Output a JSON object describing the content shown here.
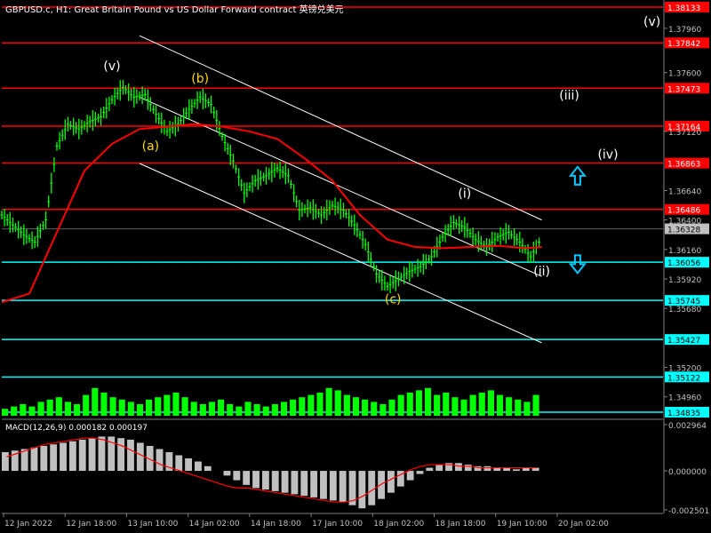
{
  "header": {
    "title": "GBPUSD.c, H1:  Great Britain Pound vs US Dollar Forward contract  英镑兑美元"
  },
  "colors": {
    "background": "#000000",
    "price_bars": "#00ff00",
    "moving_average": "#ff0000",
    "channel": "#ffffff",
    "resistance": "#ff0000",
    "support": "#00ffff",
    "wave_label_white": "#ffffff",
    "wave_label_yellow": "#ffd700",
    "arrow": "#00c8ff"
  },
  "chart_data": [
    {
      "type": "line",
      "name": "price",
      "y_axis_ticks": [
        "1.37960",
        "1.37600",
        "1.37120",
        "1.36640",
        "1.36400",
        "1.36160",
        "1.35920",
        "1.35680",
        "1.35200",
        "1.34960"
      ],
      "ylim": [
        1.34835,
        1.38133
      ],
      "x_tick_labels": [
        "12 Jan 2022",
        "12 Jan 18:00",
        "13 Jan 10:00",
        "14 Jan 02:00",
        "14 Jan 18:00",
        "17 Jan 10:00",
        "18 Jan 02:00",
        "18 Jan 18:00",
        "19 Jan 10:00",
        "20 Jan 02:00"
      ],
      "price_series": [
        {
          "x": 0,
          "y": 1.3644
        },
        {
          "x": 4,
          "y": 1.3636
        },
        {
          "x": 8,
          "y": 1.3628
        },
        {
          "x": 12,
          "y": 1.3622
        },
        {
          "x": 16,
          "y": 1.364
        },
        {
          "x": 20,
          "y": 1.37
        },
        {
          "x": 24,
          "y": 1.3718
        },
        {
          "x": 28,
          "y": 1.3714
        },
        {
          "x": 32,
          "y": 1.372
        },
        {
          "x": 36,
          "y": 1.3724
        },
        {
          "x": 40,
          "y": 1.3738
        },
        {
          "x": 44,
          "y": 1.3748
        },
        {
          "x": 48,
          "y": 1.374
        },
        {
          "x": 52,
          "y": 1.3742
        },
        {
          "x": 56,
          "y": 1.3726
        },
        {
          "x": 60,
          "y": 1.3712
        },
        {
          "x": 64,
          "y": 1.3718
        },
        {
          "x": 68,
          "y": 1.373
        },
        {
          "x": 72,
          "y": 1.374
        },
        {
          "x": 76,
          "y": 1.3734
        },
        {
          "x": 80,
          "y": 1.3708
        },
        {
          "x": 84,
          "y": 1.3688
        },
        {
          "x": 88,
          "y": 1.3662
        },
        {
          "x": 92,
          "y": 1.3672
        },
        {
          "x": 96,
          "y": 1.3676
        },
        {
          "x": 100,
          "y": 1.3682
        },
        {
          "x": 104,
          "y": 1.3676
        },
        {
          "x": 108,
          "y": 1.3648
        },
        {
          "x": 112,
          "y": 1.365
        },
        {
          "x": 116,
          "y": 1.3644
        },
        {
          "x": 120,
          "y": 1.3652
        },
        {
          "x": 124,
          "y": 1.3648
        },
        {
          "x": 128,
          "y": 1.3636
        },
        {
          "x": 132,
          "y": 1.362
        },
        {
          "x": 136,
          "y": 1.3596
        },
        {
          "x": 140,
          "y": 1.3586
        },
        {
          "x": 144,
          "y": 1.3592
        },
        {
          "x": 148,
          "y": 1.3598
        },
        {
          "x": 152,
          "y": 1.3602
        },
        {
          "x": 156,
          "y": 1.361
        },
        {
          "x": 160,
          "y": 1.3626
        },
        {
          "x": 164,
          "y": 1.3638
        },
        {
          "x": 168,
          "y": 1.3634
        },
        {
          "x": 172,
          "y": 1.3624
        },
        {
          "x": 176,
          "y": 1.3618
        },
        {
          "x": 180,
          "y": 1.3626
        },
        {
          "x": 184,
          "y": 1.363
        },
        {
          "x": 188,
          "y": 1.3622
        },
        {
          "x": 192,
          "y": 1.361
        },
        {
          "x": 196,
          "y": 1.3626
        }
      ],
      "moving_average": [
        {
          "x": 0,
          "y": 1.3573
        },
        {
          "x": 10,
          "y": 1.358
        },
        {
          "x": 20,
          "y": 1.363
        },
        {
          "x": 30,
          "y": 1.368
        },
        {
          "x": 40,
          "y": 1.3702
        },
        {
          "x": 50,
          "y": 1.3714
        },
        {
          "x": 60,
          "y": 1.3716
        },
        {
          "x": 70,
          "y": 1.3718
        },
        {
          "x": 80,
          "y": 1.3716
        },
        {
          "x": 90,
          "y": 1.3712
        },
        {
          "x": 100,
          "y": 1.3706
        },
        {
          "x": 110,
          "y": 1.369
        },
        {
          "x": 120,
          "y": 1.3672
        },
        {
          "x": 130,
          "y": 1.3644
        },
        {
          "x": 140,
          "y": 1.3624
        },
        {
          "x": 150,
          "y": 1.3618
        },
        {
          "x": 160,
          "y": 1.3617
        },
        {
          "x": 170,
          "y": 1.3618
        },
        {
          "x": 180,
          "y": 1.3619
        },
        {
          "x": 190,
          "y": 1.3617
        },
        {
          "x": 196,
          "y": 1.3618
        }
      ],
      "volume": [
        3,
        4,
        5,
        4,
        6,
        7,
        8,
        6,
        5,
        9,
        12,
        10,
        8,
        7,
        6,
        5,
        7,
        8,
        9,
        10,
        8,
        6,
        5,
        6,
        7,
        5,
        4,
        6,
        5,
        4,
        5,
        6,
        7,
        8,
        9,
        10,
        12,
        11,
        9,
        8,
        7,
        6,
        5,
        7,
        9,
        10,
        11,
        12,
        9,
        10,
        8,
        7,
        9,
        10,
        11,
        9,
        8,
        7,
        6,
        9
      ],
      "horizontal_levels": [
        {
          "label": "1.38133",
          "value": 1.38133,
          "kind": "resistance"
        },
        {
          "label": "1.37842",
          "value": 1.37842,
          "kind": "resistance"
        },
        {
          "label": "1.37473",
          "value": 1.37473,
          "kind": "resistance"
        },
        {
          "label": "1.37164",
          "value": 1.37164,
          "kind": "resistance"
        },
        {
          "label": "1.36863",
          "value": 1.36863,
          "kind": "resistance"
        },
        {
          "label": "1.36486",
          "value": 1.36486,
          "kind": "resistance"
        },
        {
          "label": "1.36056",
          "value": 1.36056,
          "kind": "support"
        },
        {
          "label": "1.35745",
          "value": 1.35745,
          "kind": "support"
        },
        {
          "label": "1.35427",
          "value": 1.35427,
          "kind": "support"
        },
        {
          "label": "1.35122",
          "value": 1.35122,
          "kind": "support"
        },
        {
          "label": "1.34835",
          "value": 1.34835,
          "kind": "support"
        }
      ],
      "current_price": {
        "label": "1.36328",
        "value": 1.36328
      },
      "channel": {
        "upper": [
          {
            "x": 50,
            "y": 1.379
          },
          {
            "x": 196,
            "y": 1.364
          }
        ],
        "middle": [
          {
            "x": 50,
            "y": 1.374
          },
          {
            "x": 196,
            "y": 1.3594
          }
        ],
        "lower": [
          {
            "x": 50,
            "y": 1.3686
          },
          {
            "x": 196,
            "y": 1.354
          }
        ]
      },
      "wave_labels": [
        {
          "text": "(v)",
          "x": 40,
          "y": 1.3762,
          "color": "white"
        },
        {
          "text": "(b)",
          "x": 72,
          "y": 1.3752,
          "color": "yellow"
        },
        {
          "text": "(a)",
          "x": 54,
          "y": 1.3697,
          "color": "yellow"
        },
        {
          "text": "(c)",
          "x": 142,
          "y": 1.3572,
          "color": "yellow"
        },
        {
          "text": "(i)",
          "x": 168,
          "y": 1.3658,
          "color": "white"
        },
        {
          "text": "(ii)",
          "x": 196,
          "y": 1.3595,
          "color": "white"
        },
        {
          "text": "(iii)",
          "x": 206,
          "y": 1.3738,
          "color": "white"
        },
        {
          "text": "(iv)",
          "x": 220,
          "y": 1.369,
          "color": "white"
        },
        {
          "text": "(v)",
          "x": 236,
          "y": 1.3798,
          "color": "white"
        }
      ],
      "arrows": [
        {
          "direction": "up",
          "x": 209,
          "y": 1.3676
        },
        {
          "direction": "down",
          "x": 209,
          "y": 1.3604
        }
      ]
    },
    {
      "type": "bar",
      "name": "macd",
      "title": "MACD(12,26,9) 0.000182 0.000197",
      "y_axis_ticks": [
        "0.002964",
        "0.000000",
        "-0.002501"
      ],
      "ylim": [
        -0.002501,
        0.002964
      ],
      "values": [
        0.0012,
        0.0013,
        0.0014,
        0.0015,
        0.0016,
        0.0017,
        0.0018,
        0.0019,
        0.002,
        0.0021,
        0.0022,
        0.0022,
        0.0021,
        0.002,
        0.0018,
        0.0016,
        0.0014,
        0.0012,
        0.001,
        0.0008,
        0.0006,
        0.0003,
        0.0,
        -0.0003,
        -0.0006,
        -0.0009,
        -0.0011,
        -0.0012,
        -0.0013,
        -0.0014,
        -0.0015,
        -0.0016,
        -0.0017,
        -0.0018,
        -0.0019,
        -0.002,
        -0.0022,
        -0.0024,
        -0.0022,
        -0.0018,
        -0.0014,
        -0.001,
        -0.0006,
        -0.0002,
        0.0002,
        0.0004,
        0.0005,
        0.0005,
        0.0004,
        0.0003,
        0.0003,
        0.0002,
        0.0002,
        0.0001,
        0.0002,
        0.0002
      ],
      "signal": [
        0.0009,
        0.0011,
        0.0013,
        0.0015,
        0.0017,
        0.0018,
        0.0019,
        0.002,
        0.0021,
        0.0021,
        0.002,
        0.0018,
        0.0016,
        0.0013,
        0.001,
        0.0007,
        0.0004,
        0.0002,
        0.0,
        -0.0002,
        -0.0004,
        -0.0006,
        -0.0008,
        -0.001,
        -0.0011,
        -0.0011,
        -0.0012,
        -0.0013,
        -0.0014,
        -0.0015,
        -0.0016,
        -0.0017,
        -0.0018,
        -0.0019,
        -0.002,
        -0.002,
        -0.0019,
        -0.0016,
        -0.0012,
        -0.0008,
        -0.0005,
        -0.0002,
        0.0001,
        0.0003,
        0.0004,
        0.0004,
        0.0004,
        0.0003,
        0.0003,
        0.0002,
        0.0002,
        0.0002,
        0.0002,
        0.0002,
        0.0002,
        0.0002
      ]
    }
  ]
}
